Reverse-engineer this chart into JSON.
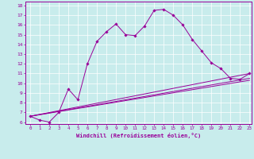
{
  "xlabel": "Windchill (Refroidissement éolien,°C)",
  "bg_color": "#c8ecec",
  "line_color": "#990099",
  "xlim": [
    -0.5,
    23.2
  ],
  "ylim": [
    5.8,
    18.4
  ],
  "xticks": [
    0,
    1,
    2,
    3,
    4,
    5,
    6,
    7,
    8,
    9,
    10,
    11,
    12,
    13,
    14,
    15,
    16,
    17,
    18,
    19,
    20,
    21,
    22,
    23
  ],
  "yticks": [
    6,
    7,
    8,
    9,
    10,
    11,
    12,
    13,
    14,
    15,
    16,
    17,
    18
  ],
  "series": [
    [
      0,
      6.6
    ],
    [
      1,
      6.2
    ],
    [
      2,
      6.0
    ],
    [
      3,
      7.0
    ],
    [
      4,
      9.4
    ],
    [
      5,
      8.3
    ],
    [
      6,
      12.0
    ],
    [
      7,
      14.3
    ],
    [
      8,
      15.3
    ],
    [
      9,
      16.1
    ],
    [
      10,
      15.0
    ],
    [
      11,
      14.9
    ],
    [
      12,
      15.9
    ],
    [
      13,
      17.5
    ],
    [
      14,
      17.6
    ],
    [
      15,
      17.0
    ],
    [
      16,
      16.0
    ],
    [
      17,
      14.5
    ],
    [
      18,
      13.3
    ],
    [
      19,
      12.1
    ],
    [
      20,
      11.5
    ],
    [
      21,
      10.5
    ],
    [
      22,
      10.4
    ],
    [
      23,
      11.0
    ]
  ],
  "line2": [
    [
      0,
      6.6
    ],
    [
      23,
      11.0
    ]
  ],
  "line3": [
    [
      0,
      6.6
    ],
    [
      23,
      10.5
    ]
  ],
  "line4": [
    [
      0,
      6.6
    ],
    [
      23,
      10.3
    ]
  ]
}
